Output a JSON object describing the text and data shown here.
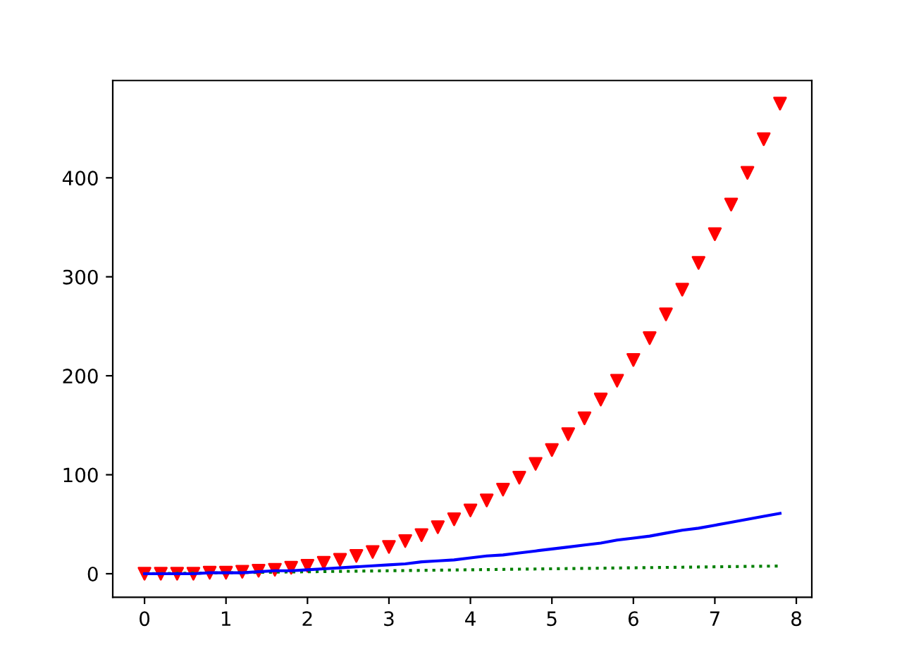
{
  "chart_data": {
    "type": "line",
    "x": [
      0,
      0.2,
      0.4,
      0.6,
      0.8,
      1,
      1.2,
      1.4,
      1.6,
      1.8,
      2,
      2.2,
      2.4,
      2.6,
      2.8,
      3,
      3.2,
      3.4,
      3.6,
      3.8,
      4,
      4.2,
      4.4,
      4.6,
      4.8,
      5,
      5.2,
      5.4,
      5.6,
      5.8,
      6,
      6.2,
      6.4,
      6.6,
      6.8,
      7,
      7.2,
      7.4,
      7.6,
      7.8
    ],
    "series": [
      {
        "color": "#008000",
        "line_style": "dotted",
        "values": [
          0,
          0.2,
          0.4,
          0.6,
          0.8,
          1,
          1.2,
          1.4,
          1.6,
          1.8,
          2,
          2.2,
          2.4,
          2.6,
          2.8,
          3,
          3.2,
          3.4,
          3.6,
          3.8,
          4,
          4.2,
          4.4,
          4.6,
          4.8,
          5,
          5.2,
          5.4,
          5.6,
          5.8,
          6,
          6.2,
          6.4,
          6.6,
          6.8,
          7,
          7.2,
          7.4,
          7.6,
          7.8
        ]
      },
      {
        "color": "#0000ff",
        "line_style": "solid",
        "values": [
          0,
          0,
          0,
          0,
          1,
          1,
          1,
          2,
          3,
          3,
          4,
          5,
          6,
          7,
          8,
          9,
          10,
          12,
          13,
          14,
          16,
          18,
          19,
          21,
          23,
          25,
          27,
          29,
          31,
          34,
          36,
          38,
          41,
          44,
          46,
          49,
          52,
          55,
          58,
          61
        ]
      },
      {
        "type": "scatter",
        "color": "#ff0000",
        "marker": "triangle",
        "values": [
          0,
          0,
          0,
          0,
          1,
          1,
          2,
          3,
          4,
          6,
          8,
          11,
          14,
          18,
          22,
          27,
          33,
          39,
          47,
          55,
          64,
          74,
          85,
          97,
          111,
          125,
          141,
          157,
          176,
          195,
          216,
          238,
          262,
          287,
          314,
          343,
          373,
          405,
          439,
          475
        ]
      }
    ],
    "xlim": [
      -0.39,
      8.19
    ],
    "xticks": [
      0,
      1,
      2,
      3,
      4,
      5,
      6,
      7,
      8
    ],
    "ylim": [
      -23.7,
      498.3
    ],
    "yticks": [
      0,
      100,
      200,
      300,
      400
    ],
    "grid": false
  }
}
